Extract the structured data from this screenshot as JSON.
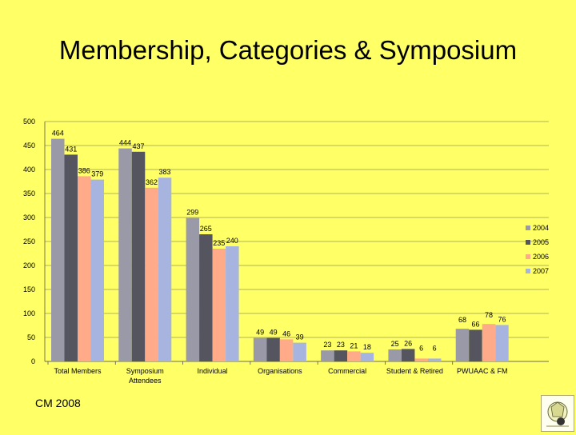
{
  "slide": {
    "title": "Membership, Categories & Symposium",
    "footer": "CM 2008"
  },
  "chart_data": {
    "type": "bar",
    "categories": [
      "Total Members",
      "Symposium Attendees",
      "Individual",
      "Organisations",
      "Commercial",
      "Student & Retired",
      "PWUAAC & FM"
    ],
    "series": [
      {
        "name": "2004",
        "color": "#9999a8",
        "values": [
          464,
          444,
          299,
          49,
          23,
          25,
          68
        ]
      },
      {
        "name": "2005",
        "color": "#55555f",
        "values": [
          431,
          437,
          265,
          49,
          23,
          26,
          66
        ]
      },
      {
        "name": "2006",
        "color": "#ffaa88",
        "values": [
          386,
          362,
          235,
          46,
          21,
          6,
          78
        ]
      },
      {
        "name": "2007",
        "color": "#a8b4e0",
        "values": [
          379,
          383,
          240,
          39,
          18,
          6,
          76
        ]
      }
    ],
    "ylim": [
      0,
      500
    ],
    "yticks": [
      0,
      50,
      100,
      150,
      200,
      250,
      300,
      350,
      400,
      450,
      500
    ],
    "grid": true,
    "legend": "right"
  },
  "logo": {
    "icon": "organization-logo-icon"
  }
}
